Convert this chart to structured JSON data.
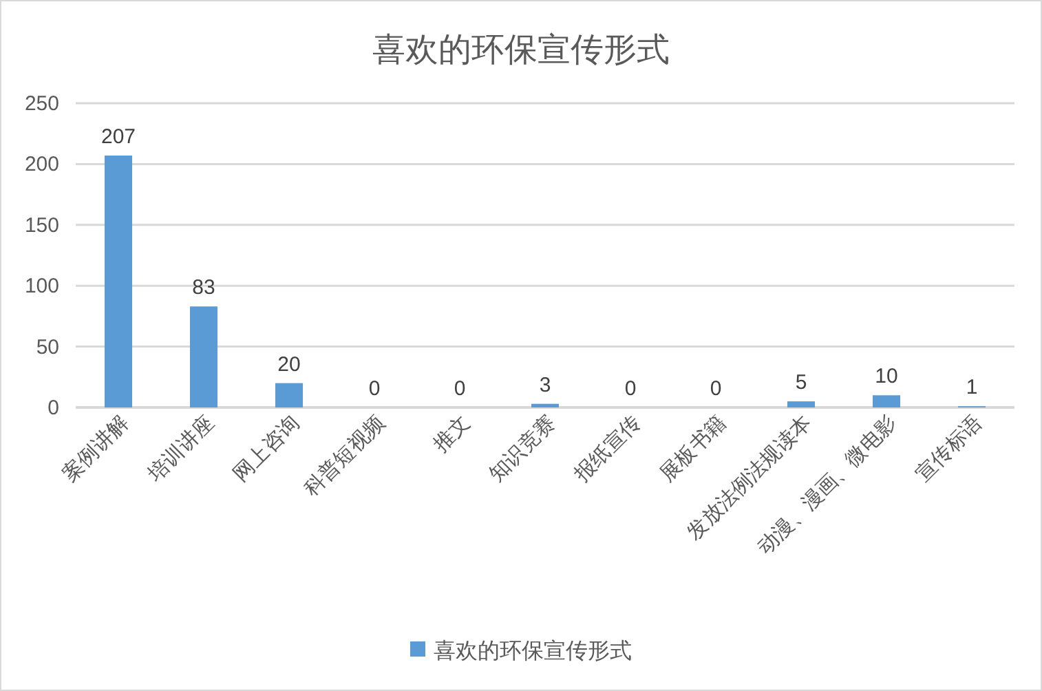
{
  "chart_data": {
    "type": "bar",
    "title": "喜欢的环保宣传形式",
    "categories": [
      "案例讲解",
      "培训讲座",
      "网上咨询",
      "科普短视频",
      "推文",
      "知识竞赛",
      "报纸宣传",
      "展板书籍",
      "发放法例法规读本",
      "动漫、漫画、微电影",
      "宣传标语"
    ],
    "series": [
      {
        "name": "喜欢的环保宣传形式",
        "color": "#5b9bd5",
        "values": [
          207,
          83,
          20,
          0,
          0,
          3,
          0,
          0,
          5,
          10,
          1
        ]
      }
    ],
    "ylim": [
      0,
      250
    ],
    "yticks": [
      0,
      50,
      100,
      150,
      200,
      250
    ],
    "grid": "y",
    "legend": "bottom",
    "data_labels": true
  }
}
